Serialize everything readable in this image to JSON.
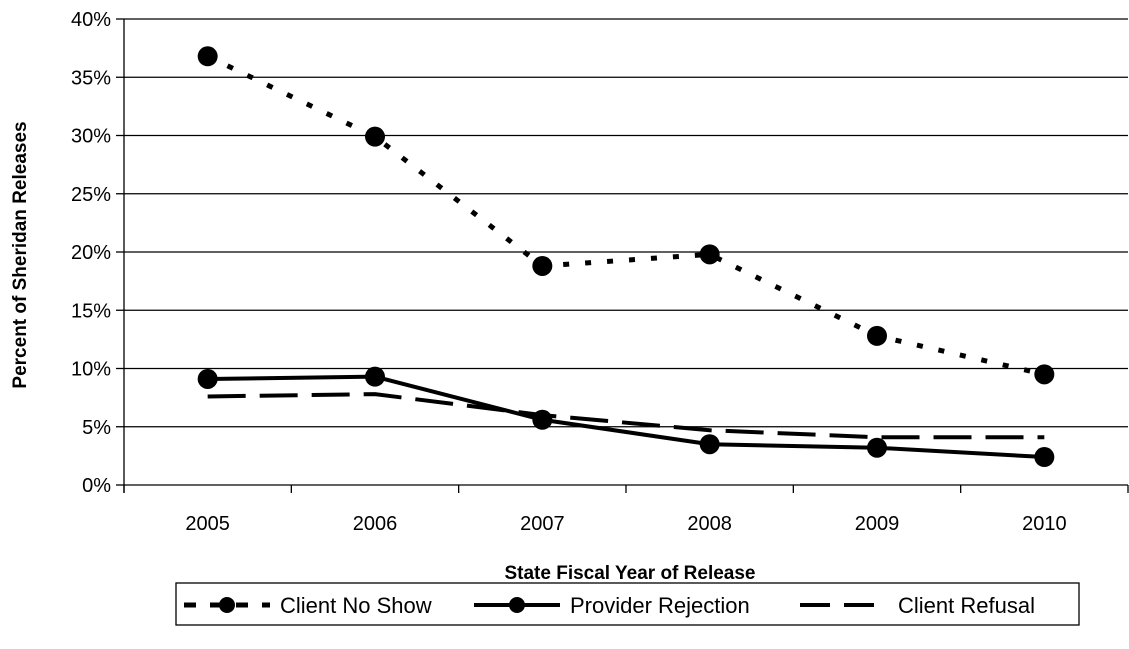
{
  "chart_data": {
    "type": "line",
    "title": "",
    "xlabel": "State Fiscal Year of Release",
    "ylabel": "Percent of Sheridan Releases",
    "categories": [
      "2005",
      "2006",
      "2007",
      "2008",
      "2009",
      "2010"
    ],
    "ylim": [
      0,
      40
    ],
    "yticks": [
      "0%",
      "5%",
      "10%",
      "15%",
      "20%",
      "25%",
      "30%",
      "35%",
      "40%"
    ],
    "grid": true,
    "legend_position": "bottom",
    "series": [
      {
        "name": "Client No Show",
        "values": [
          36.8,
          29.9,
          18.8,
          19.8,
          12.8,
          9.5
        ],
        "style": "dotted",
        "markers": true,
        "color": "#000000"
      },
      {
        "name": "Provider Rejection",
        "values": [
          9.1,
          9.3,
          5.6,
          3.5,
          3.2,
          2.4
        ],
        "style": "solid",
        "markers": true,
        "color": "#000000"
      },
      {
        "name": "Client Refusal",
        "values": [
          7.6,
          7.8,
          6.0,
          4.7,
          4.1,
          4.1
        ],
        "style": "dashed",
        "markers": false,
        "color": "#000000"
      }
    ]
  }
}
